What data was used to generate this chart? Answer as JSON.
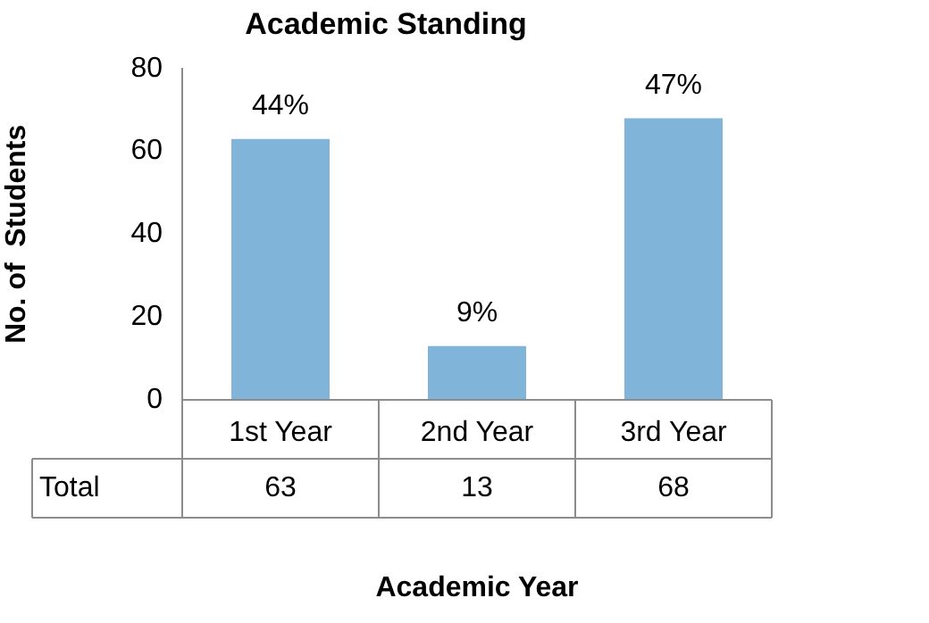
{
  "chart_data": {
    "type": "bar",
    "title": "Academic Standing",
    "xlabel": "Academic Year",
    "ylabel": "No. of  Students",
    "categories": [
      "1st Year",
      "2nd Year",
      "3rd Year"
    ],
    "series": [
      {
        "name": "Total",
        "color": "#80b4d8",
        "values": [
          63,
          13,
          68
        ]
      }
    ],
    "annotations": [
      {
        "text": "44%",
        "x": "1st Year",
        "y": 63
      },
      {
        "text": "9%",
        "x": "2nd Year",
        "y": 13
      },
      {
        "text": "47%",
        "x": "3rd Year",
        "y": 68
      }
    ],
    "ylim": [
      0,
      80
    ],
    "yticks": [
      0,
      20,
      40,
      60,
      80
    ],
    "grid": false,
    "legend": false,
    "data_labels": true
  }
}
